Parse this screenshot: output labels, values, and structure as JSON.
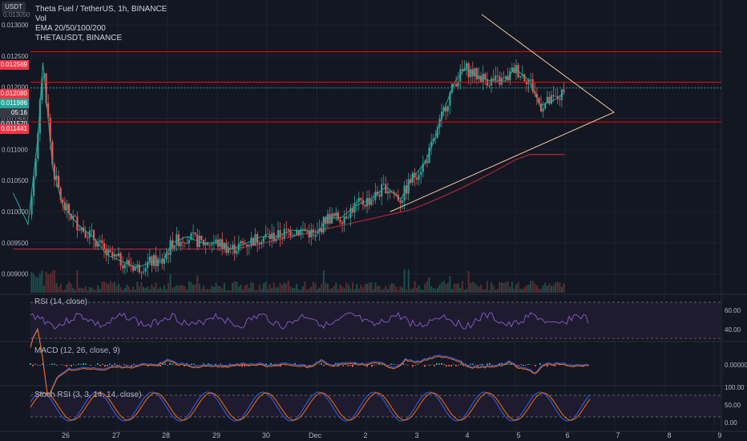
{
  "symbol_badge": "USDT",
  "symbol_badge_sub": "0.013050",
  "legend": {
    "title": "Theta Fuel / TetherUS, 1h, BINANCE",
    "vol": "Vol",
    "ema": "EMA 20/50/100/200",
    "pair": "THETAUSDT, BINANCE"
  },
  "price_labels": {
    "r1": "0.012569",
    "r2": "0.012080",
    "current": "0.011986",
    "countdown": "05:16",
    "r3": "0.011441",
    "r3_top": "0.011570"
  },
  "colors": {
    "background": "#131722",
    "up": "#26a69a",
    "down": "#ef5350",
    "ema_short": "#26a69a",
    "ema_long": "#b2243a",
    "rsi": "#7e57c2",
    "macd": "#2962ff",
    "signal": "#ff6d00",
    "stoch_k": "#2962ff",
    "stoch_d": "#ff6d00",
    "resistance": "#ff0000",
    "triangle": "#f0c8a0"
  },
  "panes": {
    "rsi_label": "RSI (14, close)",
    "macd_label": "MACD (12, 26, close, 9)",
    "stoch_label": "Stoch RSI (3, 3, 14, 14, close)"
  },
  "chart_data": {
    "type": "candlestick",
    "title": "Theta Fuel / TetherUS, 1h, BINANCE",
    "x_axis_ticks": [
      "26",
      "27",
      "28",
      "29",
      "30",
      "Dec",
      "2",
      "3",
      "4",
      "5",
      "6",
      "7",
      "8",
      "9"
    ],
    "y_axis_ticks": [
      "0.009000",
      "0.009500",
      "0.010000",
      "0.010500",
      "0.011000",
      "0.011500",
      "0.012000",
      "0.012500",
      "0.013000"
    ],
    "ylim": [
      0.0087,
      0.0134
    ],
    "horizontal_levels": [
      0.012569,
      0.01208,
      0.011441
    ],
    "current_price": 0.011986,
    "rsi_levels": [
      "60.00",
      "40.00"
    ],
    "rsi_ylim": [
      20,
      80
    ],
    "macd_tick": "0.000000",
    "stoch_ticks": [
      "100.00",
      "50.00",
      "0.00"
    ],
    "price_path": [
      [
        25.0,
        0.0103
      ],
      [
        25.3,
        0.0098
      ],
      [
        25.5,
        0.0112
      ],
      [
        25.6,
        0.0124
      ],
      [
        25.8,
        0.0107
      ],
      [
        26.0,
        0.0101
      ],
      [
        26.3,
        0.0098
      ],
      [
        26.6,
        0.0096
      ],
      [
        26.9,
        0.0093
      ],
      [
        27.2,
        0.0092
      ],
      [
        27.5,
        0.0091
      ],
      [
        27.8,
        0.0092
      ],
      [
        28.0,
        0.0092
      ],
      [
        28.2,
        0.0095
      ],
      [
        28.5,
        0.0096
      ],
      [
        28.8,
        0.0095
      ],
      [
        29.1,
        0.0095
      ],
      [
        29.4,
        0.0094
      ],
      [
        29.7,
        0.0095
      ],
      [
        30.0,
        0.0096
      ],
      [
        30.3,
        0.0096
      ],
      [
        30.6,
        0.0097
      ],
      [
        30.9,
        0.0097
      ],
      [
        31.1,
        0.0096
      ],
      [
        31.3,
        0.0099
      ],
      [
        31.6,
        0.0099
      ],
      [
        31.9,
        0.0101
      ],
      [
        32.2,
        0.0102
      ],
      [
        32.5,
        0.0104
      ],
      [
        32.8,
        0.0102
      ],
      [
        33.0,
        0.0105
      ],
      [
        33.3,
        0.0108
      ],
      [
        33.5,
        0.0112
      ],
      [
        33.7,
        0.0117
      ],
      [
        33.9,
        0.0121
      ],
      [
        34.1,
        0.0123
      ],
      [
        34.3,
        0.0122
      ],
      [
        34.6,
        0.0121
      ],
      [
        34.9,
        0.0121
      ],
      [
        35.1,
        0.0123
      ],
      [
        35.4,
        0.0121
      ],
      [
        35.6,
        0.0117
      ],
      [
        35.9,
        0.0118
      ],
      [
        36.1,
        0.0119
      ]
    ]
  }
}
